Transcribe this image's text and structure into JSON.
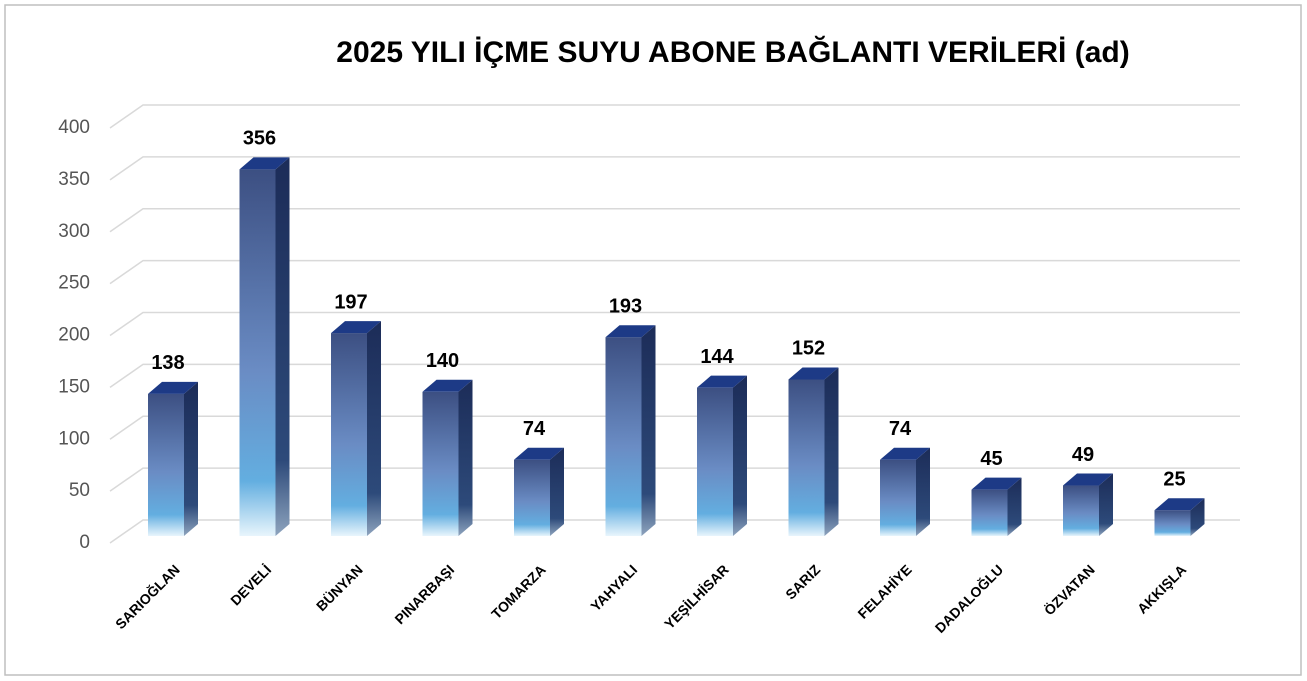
{
  "chart_data": {
    "type": "bar",
    "title": "2025 YILI İÇME SUYU ABONE BAĞLANTI VERİLERİ (ad)",
    "categories": [
      "SARIOĞLAN",
      "DEVELİ",
      "BÜNYAN",
      "PINARBAŞI",
      "TOMARZA",
      "YAHYALI",
      "YEŞİLHİSAR",
      "SARIZ",
      "FELAHİYE",
      "DADALOĞLU",
      "ÖZVATAN",
      "AKKIŞLA"
    ],
    "values": [
      138,
      356,
      197,
      140,
      74,
      193,
      144,
      152,
      74,
      45,
      49,
      25
    ],
    "color": "#4a6aa8",
    "ylim": [
      0,
      400
    ],
    "yticks": [
      0,
      50,
      100,
      150,
      200,
      250,
      300,
      350,
      400
    ],
    "grid": true
  }
}
